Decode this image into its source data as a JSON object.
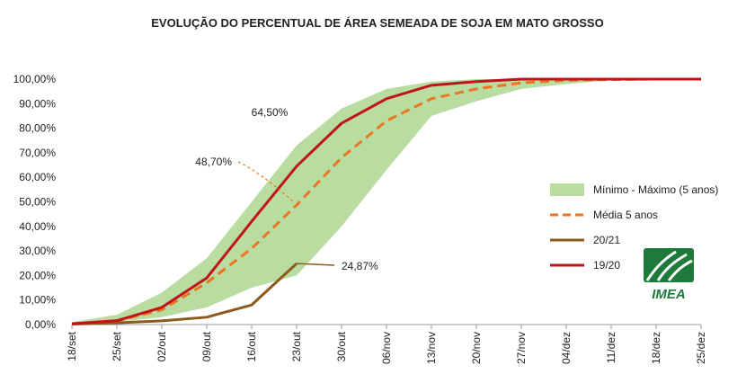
{
  "chart_data": {
    "type": "line",
    "title": "EVOLUÇÃO DO PERCENTUAL DE ÁREA SEMEADA DE SOJA EM MATO GROSSO",
    "xlabel": "",
    "ylabel": "",
    "categories": [
      "18/set",
      "25/set",
      "02/out",
      "09/out",
      "16/out",
      "23/out",
      "30/out",
      "06/nov",
      "13/nov",
      "20/nov",
      "27/nov",
      "04/dez",
      "11/dez",
      "18/dez",
      "25/dez"
    ],
    "y_ticks": [
      "0,00%",
      "10,00%",
      "20,00%",
      "30,00%",
      "40,00%",
      "50,00%",
      "60,00%",
      "70,00%",
      "80,00%",
      "90,00%",
      "100,00%"
    ],
    "ylim": [
      0,
      100
    ],
    "grid": false,
    "legend_position": "right",
    "band": {
      "name": "Mínimo - Máximo (5 anos)",
      "color": "#b9dca0",
      "min": [
        0.2,
        1.0,
        3.0,
        7.0,
        15.0,
        20.0,
        40.0,
        63.0,
        85.0,
        91.0,
        96.0,
        98.0,
        99.5,
        100.0,
        100.0
      ],
      "max": [
        1.0,
        4.0,
        13.0,
        27.0,
        50.0,
        73.0,
        88.0,
        96.0,
        99.0,
        100.0,
        100.0,
        100.0,
        100.0,
        100.0,
        100.0
      ]
    },
    "series": [
      {
        "name": "Média 5 anos",
        "color": "#e87722",
        "style": "dashed",
        "values": [
          0.3,
          1.5,
          6.0,
          17.0,
          31.0,
          48.7,
          68.0,
          83.0,
          92.0,
          96.0,
          98.5,
          99.5,
          99.8,
          100.0,
          100.0
        ]
      },
      {
        "name": "20/21",
        "color": "#8b5a1e",
        "style": "solid",
        "values": [
          0.2,
          0.7,
          1.5,
          3.0,
          8.0,
          24.87,
          null,
          null,
          null,
          null,
          null,
          null,
          null,
          null,
          null
        ]
      },
      {
        "name": "19/20",
        "color": "#c0131b",
        "style": "solid",
        "values": [
          0.3,
          1.6,
          7.0,
          19.0,
          42.0,
          64.5,
          82.0,
          92.0,
          97.5,
          99.0,
          100.0,
          100.0,
          100.0,
          100.0,
          100.0
        ]
      }
    ],
    "annotations": [
      {
        "text": "64,50%",
        "series": "19/20",
        "category": "23/out",
        "value": 64.5
      },
      {
        "text": "48,70%",
        "series": "Média 5 anos",
        "category": "23/out",
        "value": 48.7
      },
      {
        "text": "24,87%",
        "series": "20/21",
        "category": "23/out",
        "value": 24.87
      }
    ]
  },
  "logo": {
    "text": "IMEA",
    "color": "#1e7a3a"
  }
}
